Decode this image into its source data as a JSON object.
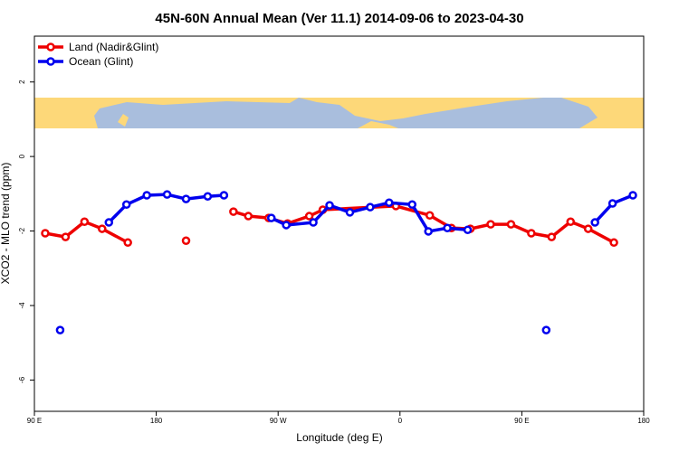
{
  "chart_data": {
    "type": "line",
    "title": "45N-60N Annual Mean (Ver 11.1)   2014-09-06 to 2023-04-30",
    "x_label": "Longitude (deg E)",
    "y_label": "XCO2 - MLO trend (ppm)",
    "xlim": [
      90,
      540
    ],
    "ylim": [
      -6.84,
      3.23
    ],
    "xticks": [
      {
        "value": 90,
        "label": "90 E"
      },
      180,
      {
        "value": 270,
        "label": "90 W"
      },
      {
        "value": 360,
        "label": "0"
      },
      {
        "value": 450,
        "label": "90 E"
      },
      {
        "value": 540,
        "label": "180"
      }
    ],
    "yticks": [
      -6,
      -4,
      -2,
      0,
      2
    ],
    "legend": "top-left",
    "series": [
      {
        "name": "Land (Nadir&Glint)",
        "color": "#ee0000",
        "x": [
          98,
          113,
          127,
          140,
          159,
          null,
          202,
          null,
          237,
          248,
          263,
          277,
          293,
          303,
          357,
          382,
          398,
          412,
          427,
          442,
          457,
          472,
          486,
          499,
          518
        ],
        "values": [
          -2.06,
          -2.16,
          -1.75,
          -1.94,
          -2.31,
          null,
          -2.26,
          null,
          -1.48,
          -1.6,
          -1.65,
          -1.8,
          -1.6,
          -1.43,
          -1.33,
          -1.58,
          -1.92,
          -1.94,
          -1.82,
          -1.82,
          -2.06,
          -2.16,
          -1.75,
          -1.94,
          -2.31
        ]
      },
      {
        "name": "Ocean (Glint)",
        "color": "#0000ee",
        "x": [
          109,
          null,
          145,
          158,
          173,
          188,
          202,
          218,
          230,
          null,
          265,
          276,
          296,
          308,
          323,
          338,
          352,
          369,
          381,
          395,
          410,
          null,
          468,
          null,
          504,
          517,
          532
        ],
        "values": [
          -4.66,
          null,
          -1.77,
          -1.29,
          -1.04,
          -1.02,
          -1.14,
          -1.07,
          -1.04,
          null,
          -1.65,
          -1.84,
          -1.77,
          -1.31,
          -1.5,
          -1.36,
          -1.24,
          -1.29,
          -2.01,
          -1.92,
          -1.97,
          null,
          -4.66,
          null,
          -1.77,
          -1.26,
          -1.04
        ]
      }
    ]
  }
}
